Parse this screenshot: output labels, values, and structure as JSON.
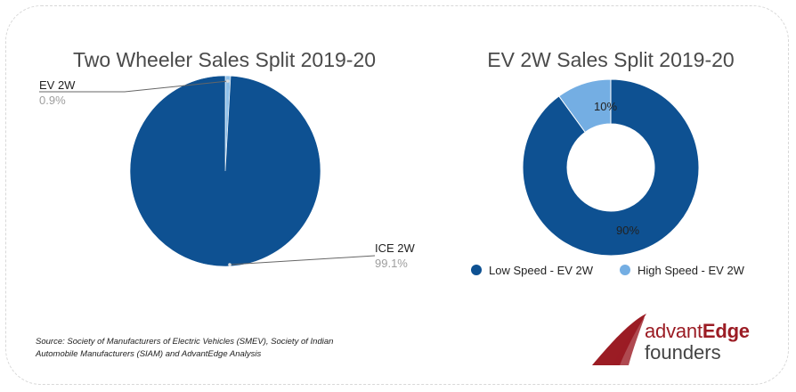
{
  "colors": {
    "ice": "#0e5192",
    "ev": "#8fc0e9",
    "low_speed": "#0e5192",
    "high_speed": "#74aee3",
    "title": "#4a4a4a",
    "label_gray": "#9e9e9e",
    "brand": "#9b1c24"
  },
  "chart_data": [
    {
      "type": "pie",
      "title": "Two Wheeler Sales Split 2019-20",
      "categories": [
        "EV 2W",
        "ICE 2W"
      ],
      "values": [
        0.9,
        99.1
      ],
      "value_labels": [
        "0.9%",
        "99.1%"
      ],
      "legend": "none"
    },
    {
      "type": "pie",
      "title": "EV 2W Sales Split 2019-20",
      "categories": [
        "Low Speed - EV 2W",
        "High Speed - EV 2W"
      ],
      "values": [
        90,
        10
      ],
      "value_labels": [
        "90%",
        "10%"
      ],
      "legend": "bottom"
    }
  ],
  "source": {
    "line1": "Source: Society of Manufacturers of Electric Vehicles (SMEV),  Society of Indian",
    "line2": "Automobile Manufacturers (SIAM) and AdvantEdge Analysis"
  },
  "logo": {
    "part1": "advant",
    "part2": "Edge",
    "line2": "founders"
  }
}
